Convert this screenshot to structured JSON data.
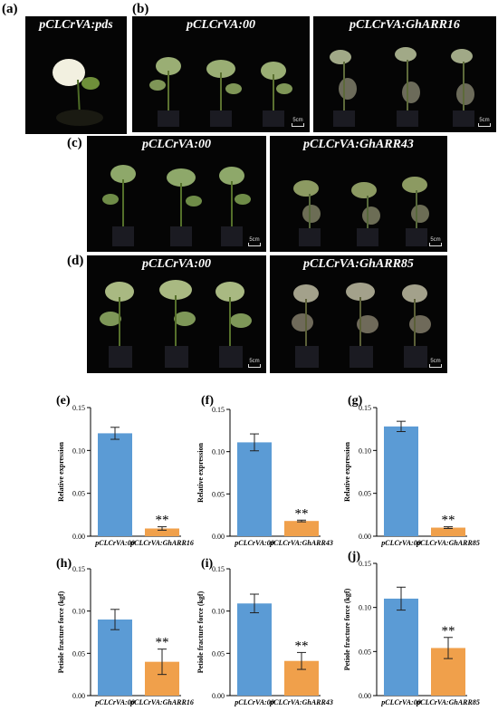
{
  "panels": {
    "a": {
      "letter": "(a)",
      "title": "pCLCrVA:pds"
    },
    "b": {
      "letter": "(b)",
      "titles": [
        "pCLCrVA:00",
        "pCLCrVA:GhARR16"
      ]
    },
    "c": {
      "letter": "(c)",
      "titles": [
        "pCLCrVA:00",
        "pCLCrVA:GhARR43"
      ]
    },
    "d": {
      "letter": "(d)",
      "titles": [
        "pCLCrVA:00",
        "pCLCrVA:GhARR85"
      ]
    }
  },
  "scale_label": "5cm",
  "chart_data": [
    {
      "id": "e",
      "letter": "(e)",
      "type": "bar",
      "categories": [
        "pCLCrVA:00",
        "pCLCrVA:GhARR16"
      ],
      "values": [
        0.12,
        0.009
      ],
      "errors": [
        0.007,
        0.002
      ],
      "ylabel": "Relative expression",
      "ylim": [
        0,
        0.15
      ],
      "yticks": [
        "0.00",
        "0.05",
        "0.10",
        "0.15"
      ],
      "colors": [
        "#5b9bd5",
        "#f0a04b"
      ],
      "significance": "**"
    },
    {
      "id": "f",
      "letter": "(f)",
      "type": "bar",
      "categories": [
        "pCLCrVA:00",
        "pCLCrVA:GhARR43"
      ],
      "values": [
        0.111,
        0.018
      ],
      "errors": [
        0.01,
        0.001
      ],
      "ylabel": "Relative expression",
      "ylim": [
        0,
        0.15
      ],
      "yticks": [
        "0.00",
        "0.05",
        "0.10",
        "0.15"
      ],
      "colors": [
        "#5b9bd5",
        "#f0a04b"
      ],
      "significance": "**"
    },
    {
      "id": "g",
      "letter": "(g)",
      "type": "bar",
      "categories": [
        "pCLCrVA:00",
        "pCLCrVA:GhARR85"
      ],
      "values": [
        0.128,
        0.01
      ],
      "errors": [
        0.006,
        0.001
      ],
      "ylabel": "Relative expression",
      "ylim": [
        0,
        0.15
      ],
      "yticks": [
        "0.00",
        "0.05",
        "0.10",
        "0.15"
      ],
      "colors": [
        "#5b9bd5",
        "#f0a04b"
      ],
      "significance": "**"
    },
    {
      "id": "h",
      "letter": "(h)",
      "type": "bar",
      "categories": [
        "pCLCrVA:00",
        "pCLCrVA:GhARR16"
      ],
      "values": [
        0.09,
        0.04
      ],
      "errors": [
        0.012,
        0.015
      ],
      "ylabel": "Petiole fracture force (kgf)",
      "ylim": [
        0,
        0.15
      ],
      "yticks": [
        "0.00",
        "0.05",
        "0.10",
        "0.15"
      ],
      "colors": [
        "#5b9bd5",
        "#f0a04b"
      ],
      "significance": "**"
    },
    {
      "id": "i",
      "letter": "(i)",
      "type": "bar",
      "categories": [
        "pCLCrVA:00",
        "pCLCrVA:GhARR43"
      ],
      "values": [
        0.109,
        0.041
      ],
      "errors": [
        0.011,
        0.01
      ],
      "ylabel": "Petiole fracture force (kgf)",
      "ylim": [
        0,
        0.15
      ],
      "yticks": [
        "0.00",
        "0.05",
        "0.10",
        "0.15"
      ],
      "colors": [
        "#5b9bd5",
        "#f0a04b"
      ],
      "significance": "**"
    },
    {
      "id": "j",
      "letter": "(j)",
      "type": "bar",
      "categories": [
        "pCLCrVA:00",
        "pCLCrVA:GhARR85"
      ],
      "values": [
        0.11,
        0.054
      ],
      "errors": [
        0.013,
        0.012
      ],
      "ylabel": "Petiole fracture force (kgf)",
      "ylim": [
        0,
        0.15
      ],
      "yticks": [
        "0.00",
        "0.05",
        "0.10",
        "0.15"
      ],
      "colors": [
        "#5b9bd5",
        "#f0a04b"
      ],
      "significance": "**"
    }
  ]
}
